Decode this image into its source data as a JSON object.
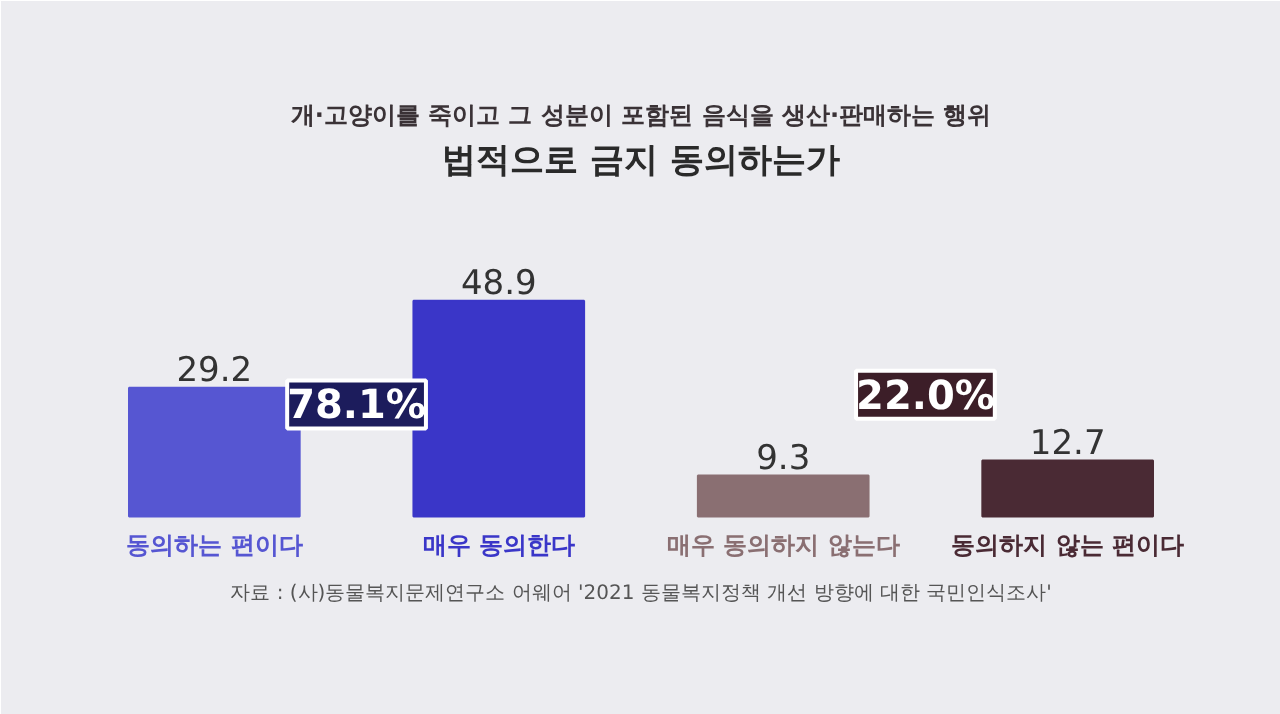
{
  "chart_data": {
    "type": "bar",
    "title": "법적으로 금지 동의하는가",
    "subtitle": "개·고양이를 죽이고 그 성분이 포함된 음식을 생산·판매하는 행위",
    "categories": [
      "동의하는 편이다",
      "매우 동의한다",
      "매우 동의하지 않는다",
      "동의하지 않는 편이다"
    ],
    "values": [
      29.2,
      48.9,
      9.3,
      12.7
    ],
    "colors": [
      "#5656d2",
      "#3a36c8",
      "#8a6f72",
      "#4a2a34"
    ],
    "data_labels": true,
    "annotations": [
      "78.1%",
      "22.0%",
      "자료 : (사)동물복지문제연구소 어웨어 '2021 동물복지정책 개선 방향에 대한 국민인식조사'"
    ]
  }
}
